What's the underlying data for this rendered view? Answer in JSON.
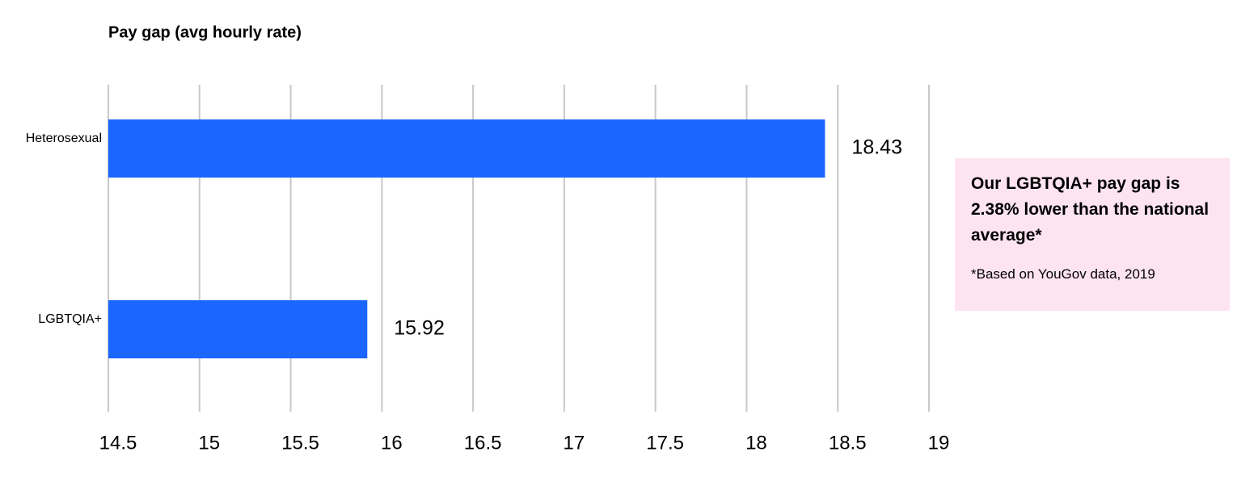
{
  "chart_data": {
    "type": "bar",
    "orientation": "horizontal",
    "title": "Pay gap (avg hourly rate)",
    "categories": [
      "Heterosexual",
      "LGBTQIA+"
    ],
    "values": [
      18.43,
      15.92
    ],
    "color": "#1a66ff",
    "xlim": [
      14.5,
      19
    ],
    "xticks": [
      14.5,
      15,
      15.5,
      16,
      16.5,
      17,
      17.5,
      18,
      18.5,
      19
    ],
    "grid": true,
    "annotation": "Our LGBTQIA+ pay gap is 2.38% lower than the national average*",
    "footnote": "*Based on YouGov data, 2019"
  }
}
